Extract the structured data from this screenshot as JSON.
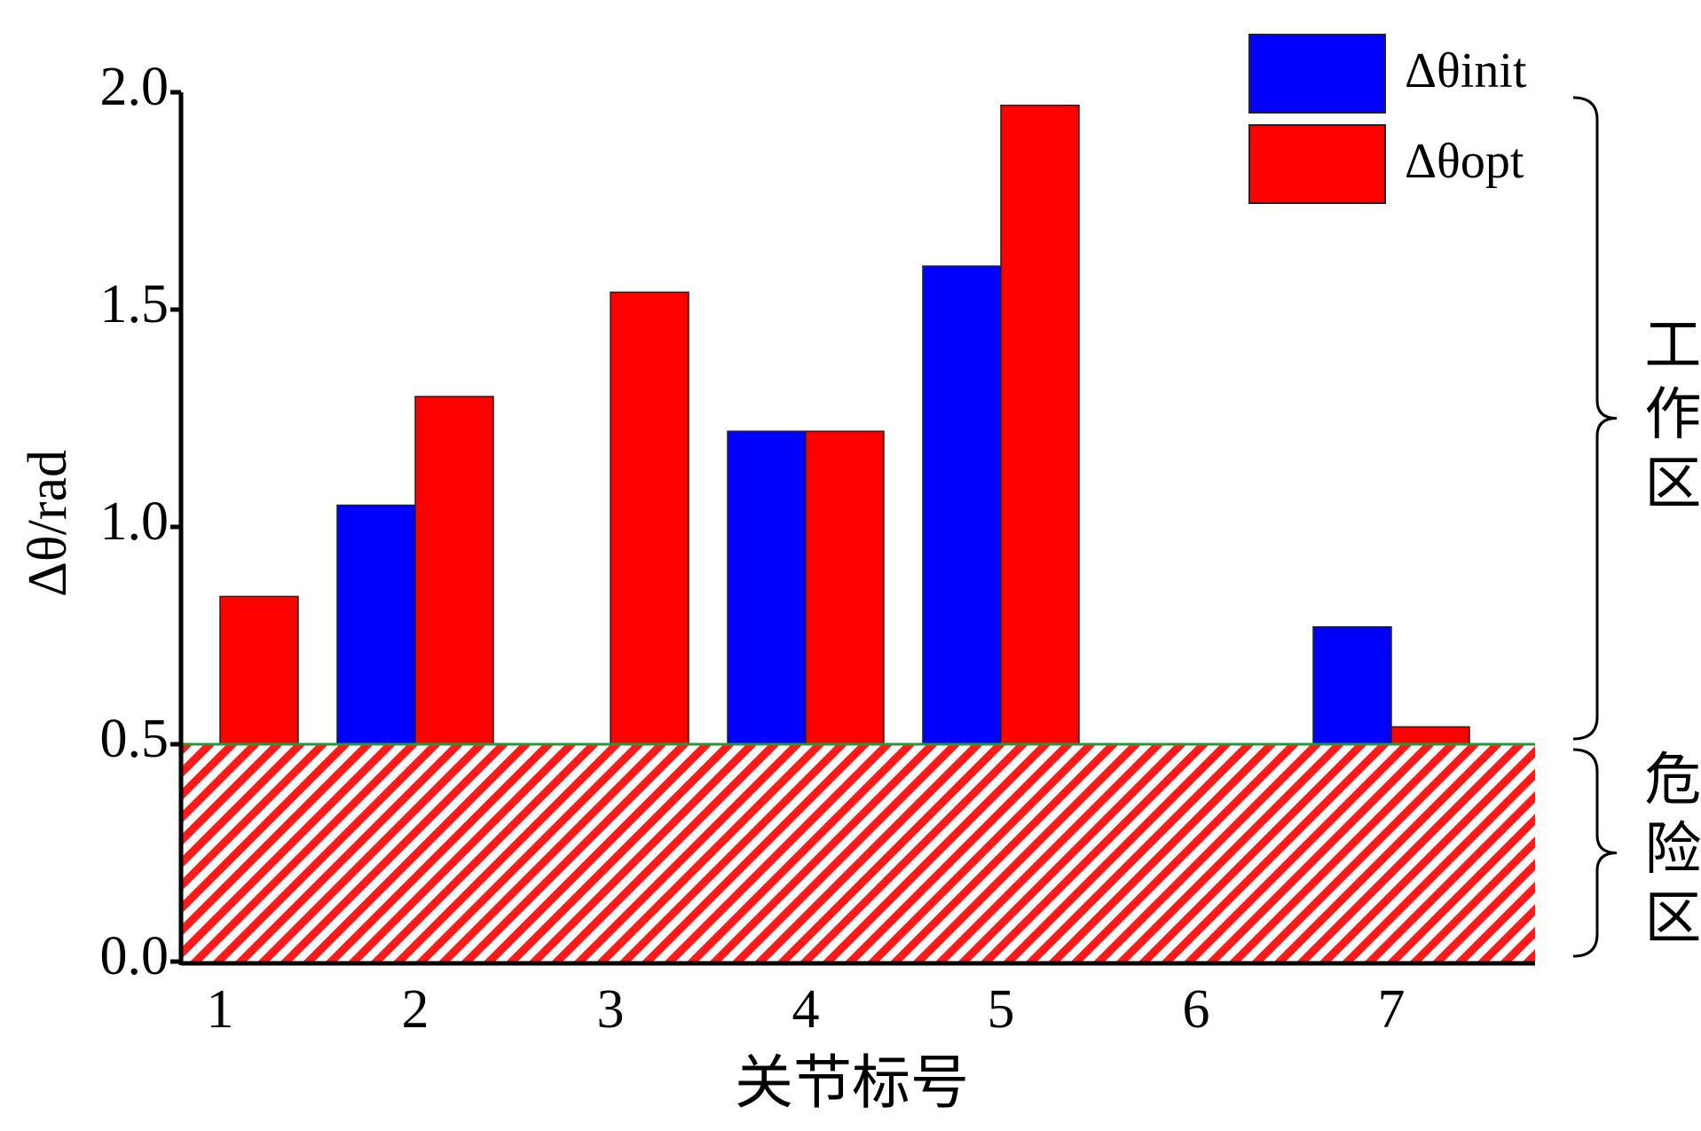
{
  "chart_data": {
    "type": "bar",
    "ylabel": "Δθ/rad",
    "xlabel": "关节标号",
    "categories": [
      "1",
      "2",
      "3",
      "4",
      "5",
      "6",
      "7"
    ],
    "series": [
      {
        "name": "Δθinit",
        "color": "#0000ff",
        "values": [
          null,
          1.05,
          null,
          1.22,
          1.6,
          null,
          0.77
        ]
      },
      {
        "name": "Δθopt",
        "color": "#ff0000",
        "values": [
          0.84,
          1.3,
          1.54,
          1.22,
          1.97,
          null,
          0.54
        ]
      }
    ],
    "ylim": [
      0,
      2.0
    ],
    "yticks": [
      {
        "value": 0,
        "label": "0.0"
      },
      0.5,
      {
        "value": 1,
        "label": "1.0"
      },
      1.5,
      {
        "value": 2,
        "label": "2.0"
      }
    ],
    "zones": [
      {
        "label": "工作区",
        "range": [
          0.5,
          2.0
        ]
      },
      {
        "label": "危险区",
        "range": [
          0,
          0.5
        ],
        "hatch": true
      }
    ]
  }
}
